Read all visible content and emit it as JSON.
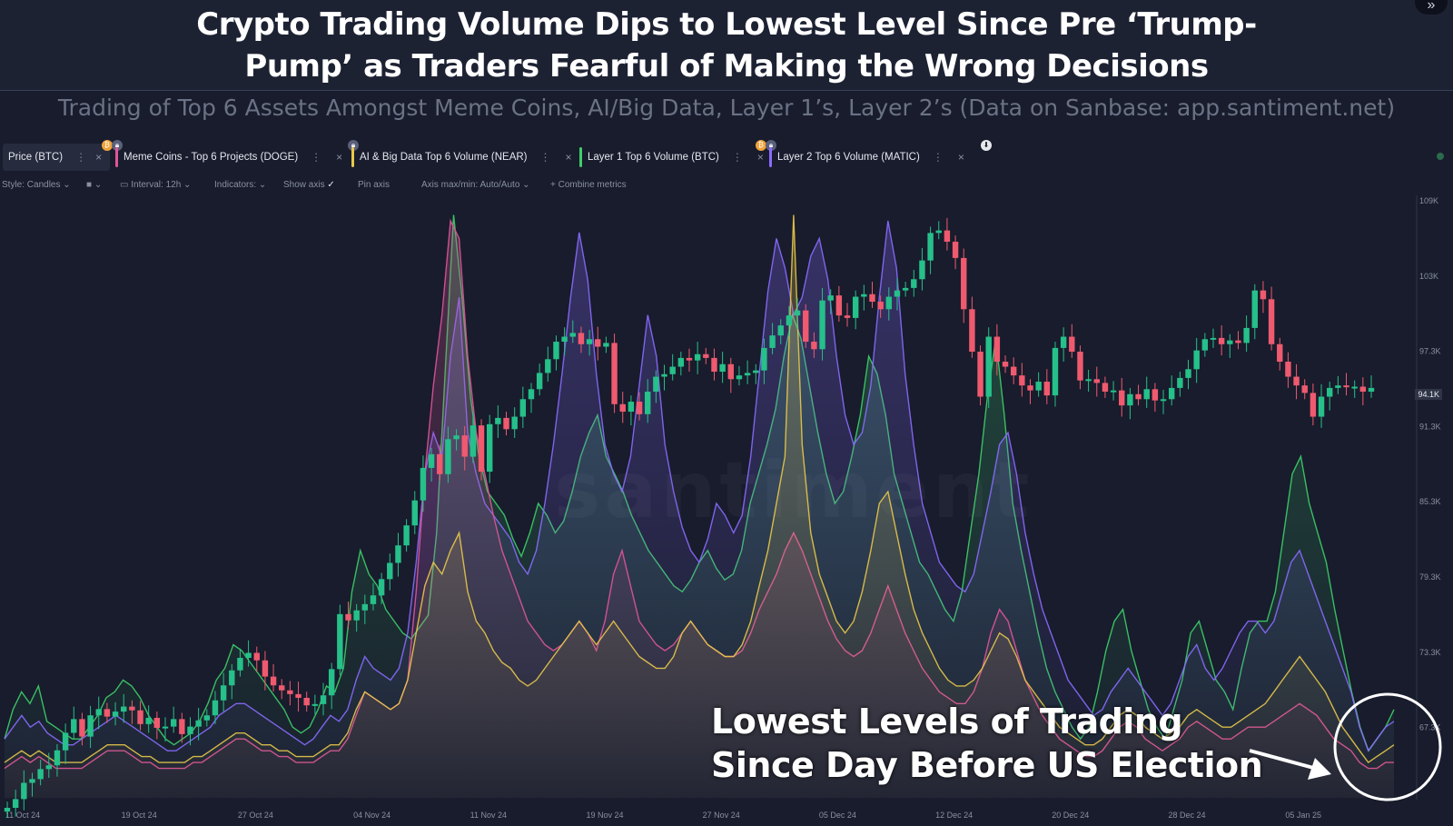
{
  "title_line1": "Crypto Trading Volume Dips to Lowest Level Since Pre ‘Trump-",
  "title_line2": "Pump’ as Traders Fearful of Making the Wrong Decisions",
  "subtitle": "Trading of Top 6 Assets Amongst Meme Coins, AI/Big Data, Layer 1’s, Layer 2’s (Data on Sanbase: app.santiment.net)",
  "corner_icon": "collapse-icon",
  "tabs": [
    {
      "label": "Price (BTC)",
      "color": "#5a607a"
    },
    {
      "label": "Meme Coins - Top 6 Projects (DOGE)",
      "color": "#e0559a"
    },
    {
      "label": "AI & Big Data Top 6 Volume (NEAR)",
      "color": "#e8c84a"
    },
    {
      "label": "Layer 1 Top 6 Volume (BTC)",
      "color": "#3ecf6a"
    },
    {
      "label": "Layer 2 Top 6 Volume (MATIC)",
      "color": "#8a6cff"
    }
  ],
  "toolbar": {
    "style": "Style: Candles",
    "interval": "Interval: 12h",
    "indicators": "Indicators:",
    "show_axis": "Show axis",
    "pin_axis": "Pin axis",
    "axis_maxmin": "Axis max/min: Auto/Auto",
    "combine": "Combine metrics"
  },
  "watermark": "santiment",
  "annotation_line1": "Lowest Levels of Trading",
  "annotation_line2": "Since Day Before US Election",
  "current_price_label": "94.1K",
  "chart_data": {
    "type": "line",
    "x_tick_labels": [
      "11 Oct 24",
      "19 Oct 24",
      "27 Oct 24",
      "04 Nov 24",
      "11 Nov 24",
      "19 Nov 24",
      "27 Nov 24",
      "05 Dec 24",
      "12 Dec 24",
      "20 Dec 24",
      "28 Dec 24",
      "05 Jan 25"
    ],
    "y_tick_labels": [
      "109K",
      "103K",
      "97.3K",
      "91.3K",
      "85.3K",
      "79.3K",
      "73.3K",
      "67.3K"
    ],
    "ylim": [
      61300,
      109000
    ],
    "candles": {
      "name": "Price (BTC)",
      "interval": "12h",
      "close": [
        60500,
        61200,
        62500,
        62800,
        63600,
        63900,
        65100,
        66500,
        67600,
        66200,
        67900,
        68400,
        67800,
        68200,
        68600,
        68300,
        67200,
        67700,
        66900,
        67000,
        67600,
        66400,
        67000,
        67500,
        67900,
        69100,
        70300,
        71500,
        72500,
        72900,
        72300,
        71000,
        70300,
        69900,
        69600,
        69300,
        68700,
        68800,
        69500,
        71600,
        76000,
        75500,
        76300,
        76800,
        77500,
        78800,
        80100,
        81500,
        83100,
        85100,
        87700,
        88800,
        87200,
        90000,
        90300,
        88600,
        91100,
        87400,
        91200,
        91700,
        90800,
        91800,
        93200,
        94000,
        95300,
        96400,
        97800,
        98200,
        98500,
        97600,
        98000,
        97400,
        97700,
        92800,
        92200,
        93000,
        92000,
        93800,
        95000,
        95200,
        95800,
        96500,
        96300,
        96800,
        96500,
        95400,
        96000,
        94800,
        95100,
        95300,
        95500,
        97300,
        98300,
        99100,
        99900,
        100300,
        97800,
        97200,
        101100,
        101500,
        99900,
        99700,
        101400,
        101600,
        101000,
        100400,
        101400,
        101900,
        102100,
        102800,
        104300,
        106500,
        106700,
        105800,
        104500,
        100400,
        97000,
        93400,
        98200,
        96200,
        95800,
        95100,
        94300,
        93900,
        94600,
        93500,
        97300,
        98200,
        97000,
        94700,
        94800,
        94500,
        93800,
        93900,
        92700,
        93600,
        93200,
        94000,
        93100,
        93200,
        94100,
        94900,
        95600,
        97100,
        98000,
        98100,
        97600,
        97900,
        97700,
        98900,
        101900,
        101200,
        97600,
        96200,
        95000,
        94300,
        93700,
        91800,
        93400,
        94100,
        94300,
        94200,
        94200,
        93800,
        94100
      ]
    },
    "series": [
      {
        "name": "Layer 1 Top 6 Volume (BTC)",
        "color": "#3ecf6a",
        "values": [
          0.1,
          0.15,
          0.18,
          0.16,
          0.19,
          0.13,
          0.12,
          0.11,
          0.1,
          0.1,
          0.12,
          0.14,
          0.17,
          0.18,
          0.2,
          0.19,
          0.17,
          0.14,
          0.12,
          0.1,
          0.09,
          0.1,
          0.11,
          0.13,
          0.16,
          0.2,
          0.22,
          0.26,
          0.25,
          0.23,
          0.21,
          0.19,
          0.17,
          0.15,
          0.12,
          0.11,
          0.12,
          0.15,
          0.19,
          0.18,
          0.22,
          0.35,
          0.42,
          0.38,
          0.36,
          0.32,
          0.3,
          0.28,
          0.27,
          0.29,
          0.31,
          0.45,
          0.72,
          0.99,
          0.85,
          0.68,
          0.58,
          0.52,
          0.5,
          0.48,
          0.44,
          0.41,
          0.45,
          0.5,
          0.48,
          0.45,
          0.47,
          0.52,
          0.58,
          0.62,
          0.65,
          0.58,
          0.55,
          0.52,
          0.48,
          0.45,
          0.42,
          0.4,
          0.38,
          0.36,
          0.35,
          0.37,
          0.4,
          0.42,
          0.39,
          0.37,
          0.38,
          0.42,
          0.5,
          0.55,
          0.6,
          0.66,
          0.75,
          0.82,
          0.78,
          0.7,
          0.62,
          0.55,
          0.5,
          0.52,
          0.58,
          0.65,
          0.75,
          0.72,
          0.65,
          0.55,
          0.5,
          0.45,
          0.4,
          0.38,
          0.35,
          0.32,
          0.3,
          0.35,
          0.45,
          0.55,
          0.68,
          0.78,
          0.65,
          0.5,
          0.42,
          0.35,
          0.28,
          0.22,
          0.18,
          0.15,
          0.12,
          0.1,
          0.12,
          0.18,
          0.25,
          0.3,
          0.32,
          0.25,
          0.2,
          0.15,
          0.12,
          0.1,
          0.15,
          0.2,
          0.28,
          0.3,
          0.25,
          0.2,
          0.18,
          0.15,
          0.22,
          0.28,
          0.3,
          0.3,
          0.35,
          0.45,
          0.55,
          0.58,
          0.5,
          0.45,
          0.4,
          0.32,
          0.25,
          0.18,
          0.12,
          0.08,
          0.1,
          0.12,
          0.15
        ]
      },
      {
        "name": "Layer 2 Top 6 Volume (MATIC)",
        "color": "#8a6cff",
        "values": [
          0.1,
          0.12,
          0.14,
          0.12,
          0.13,
          0.11,
          0.1,
          0.09,
          0.09,
          0.1,
          0.11,
          0.12,
          0.13,
          0.14,
          0.13,
          0.12,
          0.11,
          0.1,
          0.09,
          0.08,
          0.08,
          0.09,
          0.1,
          0.11,
          0.12,
          0.14,
          0.15,
          0.16,
          0.16,
          0.15,
          0.14,
          0.13,
          0.12,
          0.11,
          0.1,
          0.09,
          0.1,
          0.12,
          0.14,
          0.13,
          0.15,
          0.2,
          0.24,
          0.22,
          0.21,
          0.2,
          0.22,
          0.28,
          0.4,
          0.55,
          0.62,
          0.58,
          0.75,
          0.85,
          0.62,
          0.55,
          0.5,
          0.48,
          0.46,
          0.44,
          0.4,
          0.38,
          0.42,
          0.5,
          0.6,
          0.72,
          0.85,
          0.96,
          0.88,
          0.72,
          0.6,
          0.55,
          0.52,
          0.58,
          0.7,
          0.82,
          0.75,
          0.6,
          0.52,
          0.46,
          0.42,
          0.4,
          0.44,
          0.5,
          0.48,
          0.45,
          0.48,
          0.58,
          0.72,
          0.86,
          0.95,
          0.9,
          0.82,
          0.85,
          0.92,
          0.95,
          0.88,
          0.75,
          0.65,
          0.6,
          0.62,
          0.7,
          0.85,
          0.98,
          0.9,
          0.72,
          0.6,
          0.5,
          0.45,
          0.4,
          0.38,
          0.36,
          0.35,
          0.38,
          0.45,
          0.52,
          0.6,
          0.62,
          0.55,
          0.45,
          0.38,
          0.32,
          0.28,
          0.24,
          0.2,
          0.18,
          0.16,
          0.14,
          0.15,
          0.18,
          0.2,
          0.22,
          0.2,
          0.18,
          0.16,
          0.14,
          0.16,
          0.2,
          0.24,
          0.26,
          0.22,
          0.2,
          0.22,
          0.25,
          0.28,
          0.3,
          0.3,
          0.28,
          0.3,
          0.35,
          0.4,
          0.42,
          0.38,
          0.34,
          0.3,
          0.26,
          0.22,
          0.18,
          0.12,
          0.08,
          0.1,
          0.12,
          0.13
        ]
      },
      {
        "name": "Meme Coins - Top 6 Projects (DOGE)",
        "color": "#e0559a",
        "values": [
          0.05,
          0.06,
          0.07,
          0.06,
          0.07,
          0.06,
          0.05,
          0.05,
          0.05,
          0.05,
          0.06,
          0.07,
          0.08,
          0.08,
          0.08,
          0.07,
          0.06,
          0.06,
          0.05,
          0.05,
          0.05,
          0.05,
          0.06,
          0.06,
          0.07,
          0.08,
          0.09,
          0.1,
          0.1,
          0.09,
          0.08,
          0.08,
          0.07,
          0.07,
          0.06,
          0.06,
          0.06,
          0.07,
          0.08,
          0.08,
          0.1,
          0.14,
          0.18,
          0.17,
          0.16,
          0.15,
          0.16,
          0.2,
          0.35,
          0.55,
          0.7,
          0.82,
          0.98,
          0.95,
          0.75,
          0.62,
          0.55,
          0.48,
          0.42,
          0.38,
          0.34,
          0.3,
          0.28,
          0.26,
          0.25,
          0.26,
          0.28,
          0.3,
          0.28,
          0.25,
          0.3,
          0.38,
          0.42,
          0.36,
          0.3,
          0.28,
          0.26,
          0.25,
          0.26,
          0.28,
          0.3,
          0.28,
          0.26,
          0.25,
          0.24,
          0.24,
          0.25,
          0.28,
          0.32,
          0.35,
          0.38,
          0.42,
          0.45,
          0.42,
          0.38,
          0.34,
          0.3,
          0.27,
          0.25,
          0.24,
          0.25,
          0.28,
          0.32,
          0.36,
          0.32,
          0.28,
          0.25,
          0.22,
          0.2,
          0.18,
          0.17,
          0.16,
          0.16,
          0.18,
          0.22,
          0.28,
          0.32,
          0.3,
          0.25,
          0.2,
          0.17,
          0.14,
          0.12,
          0.1,
          0.09,
          0.08,
          0.07,
          0.07,
          0.08,
          0.1,
          0.12,
          0.13,
          0.12,
          0.1,
          0.09,
          0.08,
          0.09,
          0.1,
          0.12,
          0.13,
          0.12,
          0.11,
          0.1,
          0.1,
          0.11,
          0.12,
          0.12,
          0.12,
          0.13,
          0.14,
          0.15,
          0.16,
          0.15,
          0.14,
          0.12,
          0.1,
          0.09,
          0.08,
          0.06,
          0.05,
          0.05,
          0.06,
          0.06
        ]
      },
      {
        "name": "AI & Big Data Top 6 Volume (NEAR)",
        "color": "#e8c84a",
        "values": [
          0.06,
          0.07,
          0.08,
          0.07,
          0.08,
          0.07,
          0.06,
          0.06,
          0.06,
          0.06,
          0.07,
          0.08,
          0.09,
          0.09,
          0.09,
          0.08,
          0.07,
          0.07,
          0.06,
          0.06,
          0.06,
          0.06,
          0.07,
          0.07,
          0.08,
          0.09,
          0.1,
          0.11,
          0.11,
          0.1,
          0.09,
          0.09,
          0.08,
          0.08,
          0.07,
          0.07,
          0.07,
          0.08,
          0.09,
          0.09,
          0.11,
          0.15,
          0.18,
          0.17,
          0.16,
          0.15,
          0.16,
          0.2,
          0.28,
          0.36,
          0.4,
          0.38,
          0.42,
          0.45,
          0.35,
          0.3,
          0.28,
          0.25,
          0.23,
          0.22,
          0.2,
          0.19,
          0.2,
          0.22,
          0.24,
          0.26,
          0.28,
          0.3,
          0.28,
          0.26,
          0.28,
          0.3,
          0.28,
          0.26,
          0.24,
          0.23,
          0.22,
          0.22,
          0.24,
          0.28,
          0.3,
          0.28,
          0.26,
          0.25,
          0.24,
          0.24,
          0.26,
          0.3,
          0.36,
          0.42,
          0.5,
          0.58,
          0.99,
          0.6,
          0.45,
          0.38,
          0.34,
          0.3,
          0.28,
          0.3,
          0.35,
          0.42,
          0.5,
          0.52,
          0.45,
          0.38,
          0.32,
          0.28,
          0.25,
          0.22,
          0.2,
          0.19,
          0.19,
          0.2,
          0.22,
          0.25,
          0.28,
          0.27,
          0.24,
          0.2,
          0.18,
          0.16,
          0.14,
          0.12,
          0.11,
          0.1,
          0.09,
          0.09,
          0.1,
          0.12,
          0.14,
          0.15,
          0.14,
          0.12,
          0.11,
          0.1,
          0.11,
          0.12,
          0.14,
          0.15,
          0.14,
          0.13,
          0.12,
          0.12,
          0.13,
          0.14,
          0.15,
          0.16,
          0.18,
          0.2,
          0.22,
          0.24,
          0.22,
          0.2,
          0.18,
          0.15,
          0.12,
          0.1,
          0.08,
          0.06,
          0.07,
          0.08,
          0.09
        ]
      }
    ]
  }
}
